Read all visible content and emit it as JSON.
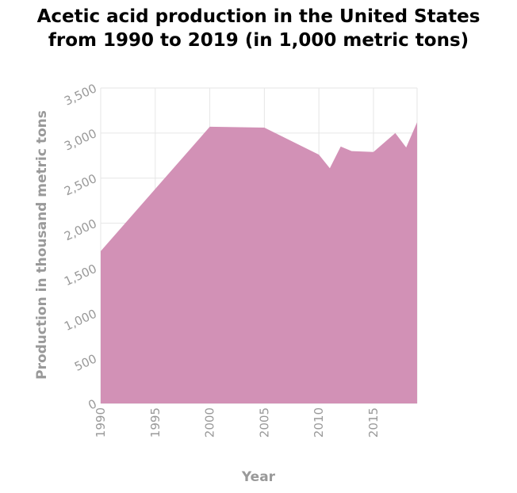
{
  "chart_data": {
    "type": "area",
    "title_lines": [
      "Acetic acid production in the United States",
      "from 1990 to 2019 (in 1,000 metric tons)"
    ],
    "xlabel": "Year",
    "ylabel": "Production in thousand metric tons",
    "xlim": [
      1990,
      2019
    ],
    "ylim": [
      0,
      3500
    ],
    "x_ticks": [
      1990,
      1995,
      2000,
      2005,
      2010,
      2015
    ],
    "y_ticks": [
      0,
      500,
      1000,
      1500,
      2000,
      2500,
      3000,
      3500
    ],
    "y_tick_labels": [
      "0",
      "500",
      "1,000",
      "1,500",
      "2,000",
      "2,500",
      "3,000",
      "3,500"
    ],
    "grid": true,
    "fill_color": "#d291b6",
    "series": [
      {
        "x": [
          1990,
          2000,
          2005,
          2010,
          2011,
          2012,
          2013,
          2015,
          2017,
          2018,
          2019
        ],
        "values": [
          1690,
          3070,
          3060,
          2760,
          2610,
          2850,
          2800,
          2790,
          3000,
          2840,
          3120
        ]
      }
    ]
  }
}
